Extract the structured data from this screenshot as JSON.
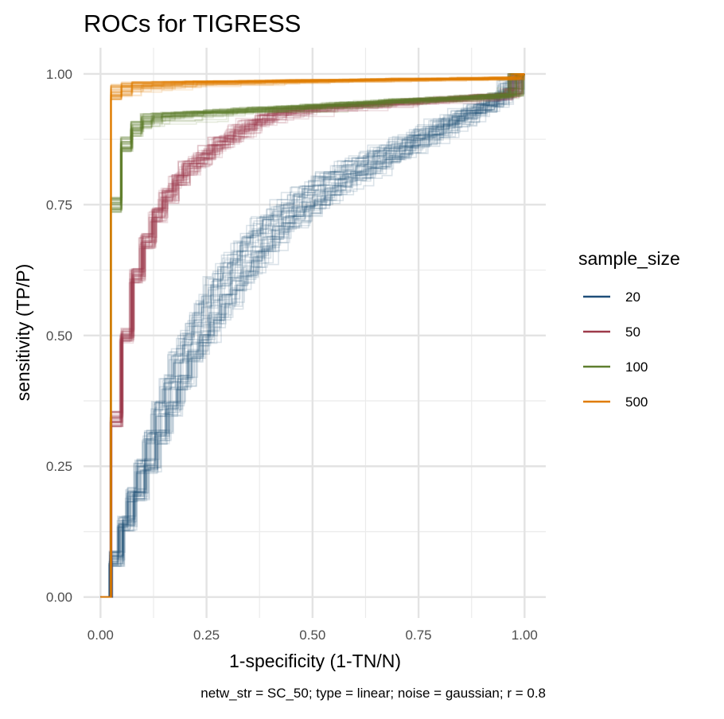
{
  "chart_data": {
    "type": "line",
    "title": "ROCs for TIGRESS",
    "xlabel": "1-specificity (1-TN/N)",
    "ylabel": "sensitivity (TP/P)",
    "caption": "netw_str = SC_50; type = linear; noise = gaussian; r = 0.8",
    "xlim": [
      -0.04,
      1.05
    ],
    "ylim": [
      -0.04,
      1.05
    ],
    "x_ticks": [
      0,
      0.25,
      0.5,
      0.75,
      1
    ],
    "x_tick_labels": [
      "0.00",
      "0.25",
      "0.50",
      "0.75",
      "1.00"
    ],
    "y_ticks": [
      0,
      0.25,
      0.5,
      0.75,
      1
    ],
    "y_tick_labels": [
      "0.00",
      "0.25",
      "0.50",
      "0.75",
      "1.00"
    ],
    "grid": true,
    "legend_title": "sample_size",
    "legend_position": "right",
    "series": [
      {
        "name": "20",
        "color": "#1f4e79",
        "replicates": 50,
        "mean_curve": {
          "x": [
            0,
            0.02,
            0.05,
            0.1,
            0.15,
            0.2,
            0.25,
            0.3,
            0.35,
            0.4,
            0.45,
            0.5,
            0.55,
            0.6,
            0.65,
            0.7,
            0.75,
            0.8,
            0.85,
            0.9,
            0.95,
            0.97,
            1
          ],
          "y": [
            0,
            0.06,
            0.14,
            0.25,
            0.36,
            0.46,
            0.53,
            0.6,
            0.65,
            0.7,
            0.73,
            0.76,
            0.79,
            0.81,
            0.83,
            0.85,
            0.87,
            0.89,
            0.91,
            0.93,
            0.95,
            0.97,
            1
          ]
        }
      },
      {
        "name": "50",
        "color": "#9e3a4a",
        "replicates": 50,
        "mean_curve": {
          "x": [
            0,
            0.01,
            0.02,
            0.03,
            0.05,
            0.07,
            0.1,
            0.13,
            0.16,
            0.2,
            0.25,
            0.3,
            0.35,
            0.4,
            0.97,
            1
          ],
          "y": [
            0,
            0.2,
            0.3,
            0.38,
            0.5,
            0.6,
            0.68,
            0.74,
            0.78,
            0.82,
            0.85,
            0.88,
            0.9,
            0.92,
            0.95,
            1
          ]
        }
      },
      {
        "name": "100",
        "color": "#5e7e2e",
        "replicates": 50,
        "mean_curve": {
          "x": [
            0,
            0.005,
            0.01,
            0.02,
            0.03,
            0.04,
            0.06,
            0.08,
            0.1,
            0.97,
            1
          ],
          "y": [
            0,
            0.35,
            0.55,
            0.7,
            0.8,
            0.85,
            0.88,
            0.9,
            0.91,
            0.95,
            1
          ]
        }
      },
      {
        "name": "500",
        "color": "#e07b00",
        "replicates": 50,
        "mean_curve": {
          "x": [
            0,
            0.002,
            0.004,
            0.006,
            0.01,
            0.03,
            0.98,
            1
          ],
          "y": [
            0,
            0.6,
            0.85,
            0.93,
            0.95,
            0.97,
            0.98,
            1
          ]
        }
      }
    ]
  }
}
